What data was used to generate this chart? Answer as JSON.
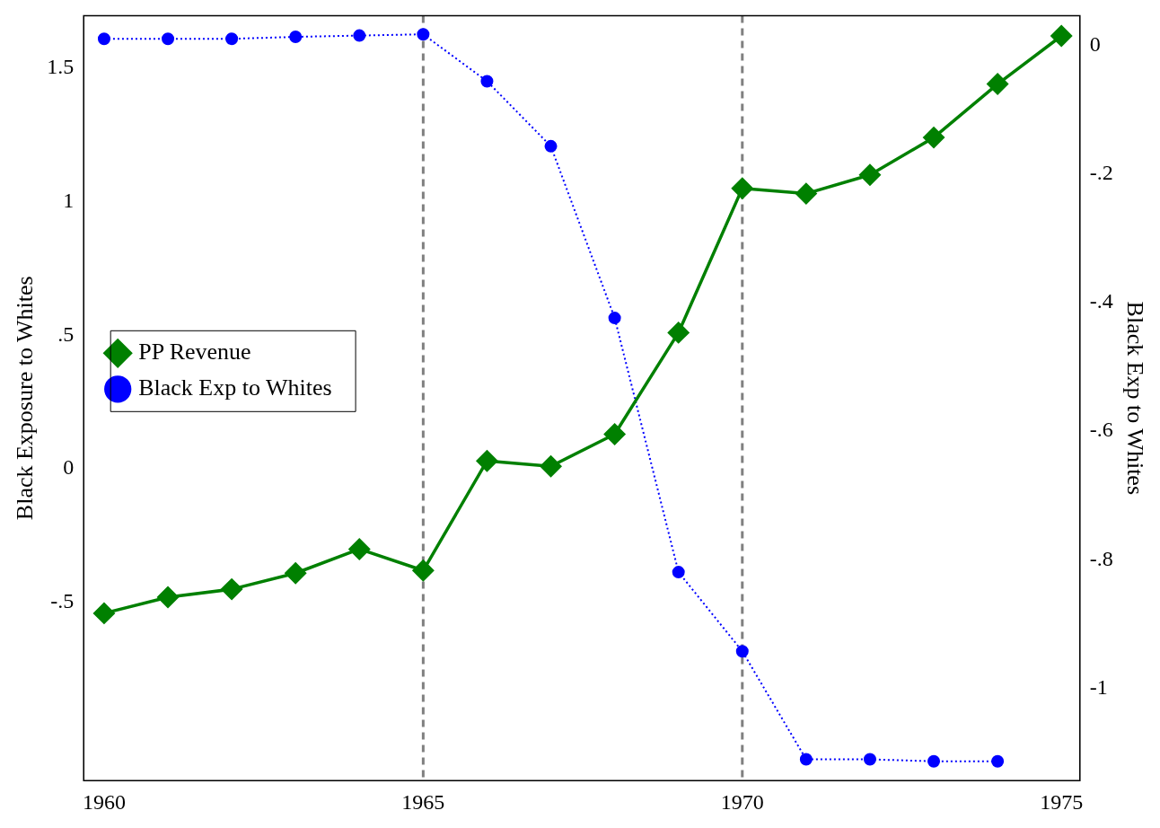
{
  "chart_data": {
    "type": "line",
    "ylabel": "Black Exposure to Whites",
    "y2label": "Black Exp to Whites",
    "x": [
      1960,
      1961,
      1962,
      1963,
      1964,
      1965,
      1966,
      1967,
      1968,
      1969,
      1970,
      1971,
      1972,
      1973,
      1974,
      1975
    ],
    "series": [
      {
        "name": "PP Revenue",
        "color": "#008000",
        "marker": "diamond",
        "line_style": "solid",
        "values": [
          -0.54,
          -0.48,
          -0.45,
          -0.39,
          -0.3,
          -0.38,
          0.03,
          0.01,
          0.13,
          0.51,
          1.05,
          1.03,
          1.1,
          1.24,
          1.44,
          1.62
        ]
      },
      {
        "name": "Black Exp to Whites",
        "color": "#0000ff",
        "marker": "circle",
        "line_style": "dotted",
        "axis": "y2",
        "values": [
          0.01,
          0.01,
          0.01,
          0.013,
          0.015,
          0.017,
          -0.056,
          -0.157,
          -0.424,
          -0.819,
          -0.942,
          -1.11,
          -1.11,
          -1.113,
          -1.113,
          null
        ]
      }
    ],
    "xlim": [
      1959.68,
      1975.29
    ],
    "xticks": [
      1960,
      1965,
      1970,
      1975
    ],
    "ylim": [
      -1.166,
      1.696
    ],
    "yticks": [
      {
        "value": -0.5,
        "label": "-.5"
      },
      0,
      {
        "value": 0.5,
        "label": ".5"
      },
      1,
      1.5
    ],
    "y2lim": [
      -1.143,
      0.046
    ],
    "y2ticks": [
      {
        "value": -1,
        "label": "-1"
      },
      {
        "value": -0.8,
        "label": "-.8"
      },
      {
        "value": -0.6,
        "label": "-.6"
      },
      {
        "value": -0.4,
        "label": "-.4"
      },
      {
        "value": -0.2,
        "label": "-.2"
      },
      0
    ],
    "ref_lines": [
      {
        "axis": "x",
        "value": 1965,
        "color": "#808080",
        "line_style": "dashed"
      },
      {
        "axis": "x",
        "value": 1970,
        "color": "#808080",
        "line_style": "dashed"
      }
    ],
    "grid": false,
    "legend": "left"
  }
}
